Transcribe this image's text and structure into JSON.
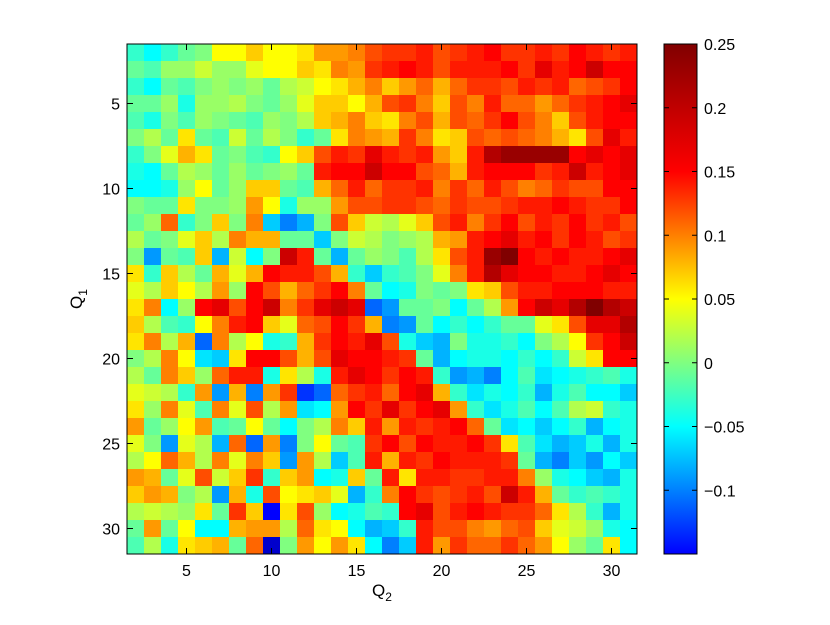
{
  "chart_data": {
    "type": "heatmap",
    "title": "",
    "xlabel": "Q",
    "xlabel_sub": "2",
    "ylabel": "Q",
    "ylabel_sub": "1",
    "x_range": [
      1.5,
      31.5
    ],
    "y_range": [
      1.5,
      31.5
    ],
    "y_reversed": true,
    "x_ticks": [
      5,
      10,
      15,
      20,
      25,
      30
    ],
    "x_tick_labels": [
      "5",
      "10",
      "15",
      "20",
      "25",
      "30"
    ],
    "y_ticks": [
      5,
      10,
      15,
      20,
      25,
      30
    ],
    "y_tick_labels": [
      "5",
      "10",
      "15",
      "20",
      "25",
      "30"
    ],
    "colormap": "jet",
    "color_range": [
      -0.15,
      0.25
    ],
    "colorbar_ticks": [
      -0.1,
      -0.05,
      0,
      0.05,
      0.1,
      0.15,
      0.2,
      0.25
    ],
    "colorbar_tick_labels": [
      "−0.1",
      "−0.05",
      "0",
      "0.05",
      "0.1",
      "0.15",
      "0.2",
      "0.25"
    ],
    "grid": false,
    "rows": [
      2,
      3,
      4,
      5,
      6,
      7,
      8,
      9,
      10,
      11,
      12,
      13,
      14,
      15,
      16,
      17,
      18,
      19,
      20,
      21,
      22,
      23,
      24,
      25,
      26,
      27,
      28,
      29,
      30,
      31
    ],
    "cols": [
      2,
      3,
      4,
      5,
      6,
      7,
      8,
      9,
      10,
      11,
      12,
      13,
      14,
      15,
      16,
      17,
      18,
      19,
      20,
      21,
      22,
      23,
      24,
      25,
      26,
      27,
      28,
      29,
      30,
      31
    ],
    "values": [
      [
        0.02,
        0.0,
        0.02,
        0.04,
        0.05,
        0.1,
        0.1,
        0.12,
        0.1,
        0.1,
        0.11,
        0.14,
        0.14,
        0.15,
        0.17,
        0.18,
        0.18,
        0.19,
        0.17,
        0.18,
        0.19,
        0.2,
        0.18,
        0.18,
        0.19,
        0.18,
        0.2,
        0.19,
        0.18,
        0.19
      ],
      [
        0.04,
        0.03,
        0.06,
        0.06,
        0.08,
        0.06,
        0.06,
        0.09,
        0.1,
        0.1,
        0.12,
        0.11,
        0.15,
        0.14,
        0.18,
        0.19,
        0.2,
        0.19,
        0.17,
        0.19,
        0.19,
        0.19,
        0.2,
        0.18,
        0.21,
        0.19,
        0.2,
        0.22,
        0.2,
        0.2
      ],
      [
        0.02,
        0.0,
        0.04,
        0.03,
        0.05,
        0.06,
        0.05,
        0.06,
        0.04,
        0.07,
        0.08,
        0.1,
        0.11,
        0.13,
        0.15,
        0.12,
        0.14,
        0.16,
        0.13,
        0.16,
        0.18,
        0.18,
        0.17,
        0.19,
        0.18,
        0.19,
        0.16,
        0.17,
        0.18,
        0.2
      ],
      [
        0.04,
        0.04,
        0.06,
        0.01,
        0.06,
        0.06,
        0.07,
        0.05,
        0.04,
        0.06,
        0.09,
        0.12,
        0.12,
        0.1,
        0.13,
        0.17,
        0.18,
        0.15,
        0.12,
        0.17,
        0.15,
        0.19,
        0.16,
        0.16,
        0.14,
        0.16,
        0.18,
        0.19,
        0.2,
        0.21
      ],
      [
        0.03,
        0.01,
        0.05,
        0.03,
        0.06,
        0.05,
        0.04,
        0.03,
        0.06,
        0.05,
        0.07,
        0.12,
        0.13,
        0.15,
        0.12,
        0.11,
        0.15,
        0.17,
        0.13,
        0.17,
        0.16,
        0.18,
        0.2,
        0.17,
        0.15,
        0.12,
        0.17,
        0.19,
        0.2,
        0.2
      ],
      [
        0.05,
        0.07,
        0.04,
        0.11,
        0.04,
        0.03,
        0.08,
        0.04,
        0.07,
        0.05,
        0.02,
        0.04,
        0.11,
        0.15,
        0.14,
        0.13,
        0.18,
        0.15,
        0.11,
        0.12,
        0.17,
        0.16,
        0.17,
        0.16,
        0.15,
        0.13,
        0.11,
        0.17,
        0.21,
        0.19
      ],
      [
        0.02,
        0.05,
        0.09,
        0.13,
        0.11,
        0.04,
        0.05,
        0.03,
        0.02,
        0.1,
        0.12,
        0.17,
        0.19,
        0.18,
        0.21,
        0.19,
        0.18,
        0.19,
        0.14,
        0.12,
        0.19,
        0.23,
        0.24,
        0.24,
        0.24,
        0.24,
        0.2,
        0.21,
        0.2,
        0.21
      ],
      [
        0.01,
        0.0,
        0.04,
        0.07,
        0.06,
        0.04,
        0.06,
        0.04,
        0.05,
        0.06,
        0.04,
        0.19,
        0.2,
        0.2,
        0.22,
        0.2,
        0.2,
        0.17,
        0.16,
        0.13,
        0.19,
        0.2,
        0.2,
        0.2,
        0.18,
        0.19,
        0.22,
        0.19,
        0.2,
        0.21
      ],
      [
        0.0,
        0.0,
        0.01,
        0.06,
        0.1,
        0.04,
        0.06,
        0.12,
        0.12,
        0.04,
        0.03,
        0.13,
        0.16,
        0.19,
        0.16,
        0.18,
        0.18,
        0.19,
        0.15,
        0.18,
        0.16,
        0.19,
        0.17,
        0.15,
        0.16,
        0.18,
        0.17,
        0.17,
        0.2,
        0.2
      ],
      [
        0.05,
        0.04,
        0.04,
        0.11,
        0.05,
        0.05,
        0.06,
        0.14,
        0.1,
        0.01,
        0.06,
        0.06,
        0.14,
        0.17,
        0.17,
        0.18,
        0.18,
        0.17,
        0.16,
        0.18,
        0.17,
        0.17,
        0.18,
        0.19,
        0.19,
        0.2,
        0.19,
        0.18,
        0.18,
        0.2
      ],
      [
        0.04,
        0.06,
        0.16,
        0.02,
        0.05,
        0.12,
        0.05,
        0.15,
        -0.02,
        -0.05,
        -0.03,
        0.05,
        0.17,
        0.12,
        0.08,
        0.07,
        0.09,
        0.12,
        0.17,
        0.19,
        0.15,
        0.18,
        0.2,
        0.17,
        0.19,
        0.18,
        0.2,
        0.18,
        0.19,
        0.17
      ],
      [
        0.07,
        0.04,
        0.05,
        0.09,
        0.12,
        0.07,
        0.15,
        0.13,
        0.13,
        0.04,
        0.04,
        -0.02,
        0.05,
        0.08,
        0.07,
        0.05,
        0.06,
        0.07,
        0.13,
        0.14,
        0.19,
        0.2,
        0.21,
        0.19,
        0.2,
        0.18,
        0.2,
        0.19,
        0.17,
        0.18
      ],
      [
        0.05,
        -0.04,
        0.04,
        0.03,
        0.12,
        -0.03,
        0.08,
        0.0,
        0.05,
        0.22,
        0.19,
        0.04,
        -0.03,
        0.04,
        0.06,
        0.05,
        0.03,
        0.07,
        0.11,
        0.17,
        0.19,
        0.24,
        0.25,
        0.2,
        0.19,
        0.2,
        0.19,
        0.19,
        0.2,
        0.21
      ],
      [
        0.11,
        0.02,
        0.12,
        0.07,
        0.04,
        0.13,
        0.09,
        0.13,
        0.2,
        0.19,
        0.19,
        0.17,
        0.13,
        0.02,
        -0.02,
        0.02,
        0.03,
        0.05,
        0.09,
        0.15,
        0.19,
        0.23,
        0.21,
        0.2,
        0.2,
        0.19,
        0.19,
        0.2,
        0.21,
        0.2
      ],
      [
        0.09,
        0.07,
        0.12,
        0.1,
        0.07,
        0.14,
        0.06,
        0.2,
        0.17,
        0.13,
        0.16,
        0.18,
        0.2,
        0.15,
        0.04,
        0.0,
        0.01,
        0.05,
        0.04,
        0.05,
        0.11,
        0.12,
        0.17,
        0.19,
        0.19,
        0.2,
        0.2,
        0.2,
        0.19,
        0.19
      ],
      [
        0.11,
        0.15,
        0.0,
        0.06,
        0.2,
        0.21,
        0.17,
        0.2,
        0.22,
        0.15,
        0.18,
        0.21,
        0.22,
        0.21,
        -0.06,
        -0.04,
        0.04,
        0.04,
        0.05,
        0.0,
        0.04,
        0.07,
        0.14,
        0.2,
        0.22,
        0.21,
        0.23,
        0.25,
        0.23,
        0.22
      ],
      [
        0.12,
        0.07,
        0.03,
        0.02,
        0.1,
        0.15,
        0.19,
        0.2,
        0.12,
        0.09,
        0.16,
        0.17,
        0.2,
        0.18,
        0.13,
        -0.05,
        -0.04,
        0.04,
        0.0,
        0.02,
        0.0,
        0.02,
        0.04,
        0.04,
        0.09,
        0.11,
        0.17,
        0.21,
        0.21,
        0.23
      ],
      [
        0.11,
        0.15,
        0.07,
        0.13,
        -0.06,
        0.15,
        0.07,
        0.1,
        0.01,
        0.02,
        0.13,
        0.18,
        0.2,
        0.19,
        0.21,
        0.17,
        0.01,
        -0.02,
        -0.03,
        0.05,
        0.01,
        0.01,
        0.02,
        0.0,
        0.05,
        0.07,
        0.1,
        0.18,
        0.2,
        0.22
      ],
      [
        0.05,
        0.07,
        0.15,
        0.1,
        -0.01,
        -0.02,
        0.11,
        0.2,
        0.2,
        0.17,
        0.13,
        0.17,
        0.21,
        0.2,
        0.2,
        0.19,
        0.18,
        0.04,
        -0.03,
        0.0,
        0.01,
        0.01,
        0.0,
        0.02,
        0.0,
        0.02,
        0.08,
        0.11,
        0.2,
        0.2
      ],
      [
        0.07,
        0.04,
        0.15,
        0.12,
        0.06,
        0.16,
        0.19,
        0.19,
        0.01,
        0.11,
        0.07,
        0.01,
        0.19,
        0.21,
        0.2,
        0.18,
        0.2,
        0.19,
        0.02,
        -0.04,
        -0.03,
        -0.05,
        0.0,
        0.03,
        -0.01,
        0.0,
        0.01,
        0.02,
        0.03,
        0.01
      ],
      [
        0.09,
        0.08,
        0.07,
        0.02,
        0.14,
        -0.04,
        0.13,
        -0.05,
        0.14,
        0.18,
        -0.08,
        -0.06,
        0.16,
        0.18,
        0.19,
        0.16,
        0.2,
        0.21,
        0.13,
        0.02,
        -0.01,
        0.01,
        0.0,
        0.02,
        -0.03,
        0.01,
        0.03,
        0.0,
        0.0,
        -0.02
      ],
      [
        0.11,
        0.06,
        0.15,
        0.09,
        0.03,
        0.15,
        0.09,
        0.17,
        0.07,
        0.14,
        -0.01,
        0.0,
        0.14,
        0.2,
        0.18,
        0.21,
        0.18,
        0.2,
        0.21,
        0.14,
        0.02,
        -0.01,
        0.01,
        0.03,
        0.0,
        0.03,
        0.07,
        0.08,
        0.02,
        0.01
      ],
      [
        0.14,
        0.04,
        0.06,
        0.1,
        0.14,
        0.03,
        0.04,
        0.1,
        0.04,
        0.0,
        0.05,
        0.07,
        0.15,
        0.12,
        0.19,
        0.14,
        0.19,
        0.18,
        0.19,
        0.2,
        0.16,
        0.04,
        -0.01,
        0.0,
        -0.02,
        0.0,
        0.02,
        -0.03,
        0.0,
        0.01
      ],
      [
        0.09,
        0.05,
        -0.04,
        0.09,
        0.07,
        -0.03,
        0.16,
        -0.06,
        0.14,
        -0.05,
        0.05,
        0.1,
        0.04,
        0.03,
        0.18,
        0.2,
        0.17,
        0.2,
        0.19,
        0.19,
        0.2,
        0.18,
        0.11,
        0.03,
        -0.01,
        -0.03,
        -0.02,
        0.01,
        -0.03,
        0.01
      ],
      [
        0.07,
        0.1,
        0.16,
        0.13,
        0.07,
        0.15,
        0.09,
        0.15,
        0.12,
        -0.04,
        0.14,
        0.07,
        -0.02,
        0.03,
        0.19,
        0.13,
        0.19,
        0.18,
        0.2,
        0.19,
        0.19,
        0.19,
        0.18,
        0.04,
        -0.03,
        -0.05,
        -0.02,
        -0.04,
        0.0,
        -0.02
      ],
      [
        0.14,
        0.13,
        0.04,
        0.09,
        0.17,
        0.08,
        0.12,
        0.18,
        0.02,
        0.12,
        0.14,
        0.0,
        0.01,
        0.12,
        0.04,
        0.19,
        0.11,
        0.19,
        0.19,
        0.18,
        0.18,
        0.19,
        0.19,
        0.15,
        0.06,
        0.01,
        0.0,
        -0.02,
        -0.03,
        0.01
      ],
      [
        0.12,
        0.14,
        0.13,
        0.05,
        0.07,
        -0.04,
        0.13,
        0.01,
        0.17,
        0.1,
        0.11,
        0.12,
        0.09,
        -0.03,
        0.02,
        0.15,
        0.2,
        0.18,
        0.17,
        0.18,
        0.19,
        0.17,
        0.22,
        0.19,
        0.13,
        0.04,
        0.02,
        0.03,
        0.02,
        0.01
      ],
      [
        0.07,
        0.08,
        0.07,
        0.06,
        0.11,
        0.04,
        0.18,
        0.12,
        -0.1,
        0.11,
        0.17,
        0.06,
        0.0,
        0.01,
        0.03,
        0.02,
        0.2,
        0.21,
        0.17,
        0.19,
        0.2,
        0.19,
        0.18,
        0.18,
        0.16,
        0.11,
        0.07,
        0.02,
        -0.03,
        0.01
      ],
      [
        0.04,
        0.14,
        0.04,
        0.1,
        0.0,
        0.0,
        0.13,
        0.14,
        0.14,
        0.07,
        0.16,
        0.11,
        0.1,
        0.0,
        -0.03,
        -0.02,
        0.02,
        0.19,
        0.17,
        0.17,
        0.15,
        0.14,
        0.16,
        0.17,
        0.12,
        0.09,
        0.08,
        0.06,
        0.01,
        0.0
      ],
      [
        0.03,
        0.07,
        0.01,
        0.11,
        0.12,
        0.13,
        0.04,
        0.16,
        -0.12,
        0.05,
        0.14,
        0.1,
        0.14,
        0.11,
        0.0,
        -0.05,
        -0.02,
        0.19,
        0.14,
        0.18,
        0.16,
        0.16,
        0.18,
        0.16,
        0.14,
        0.1,
        0.06,
        0.04,
        0.11,
        0.0
      ],
      [
        0.05,
        0.11,
        0.02,
        0.12,
        0.13,
        0.09,
        0.14,
        0.03,
        0.11,
        0.11,
        -0.03,
        0.15,
        0.1,
        0.16,
        0.09,
        0.13,
        0.15,
        0.03,
        0.18,
        0.15,
        0.18,
        0.15,
        0.13,
        0.17,
        0.16,
        0.17,
        0.16,
        0.19,
        0.15,
        0.05
      ]
    ]
  }
}
